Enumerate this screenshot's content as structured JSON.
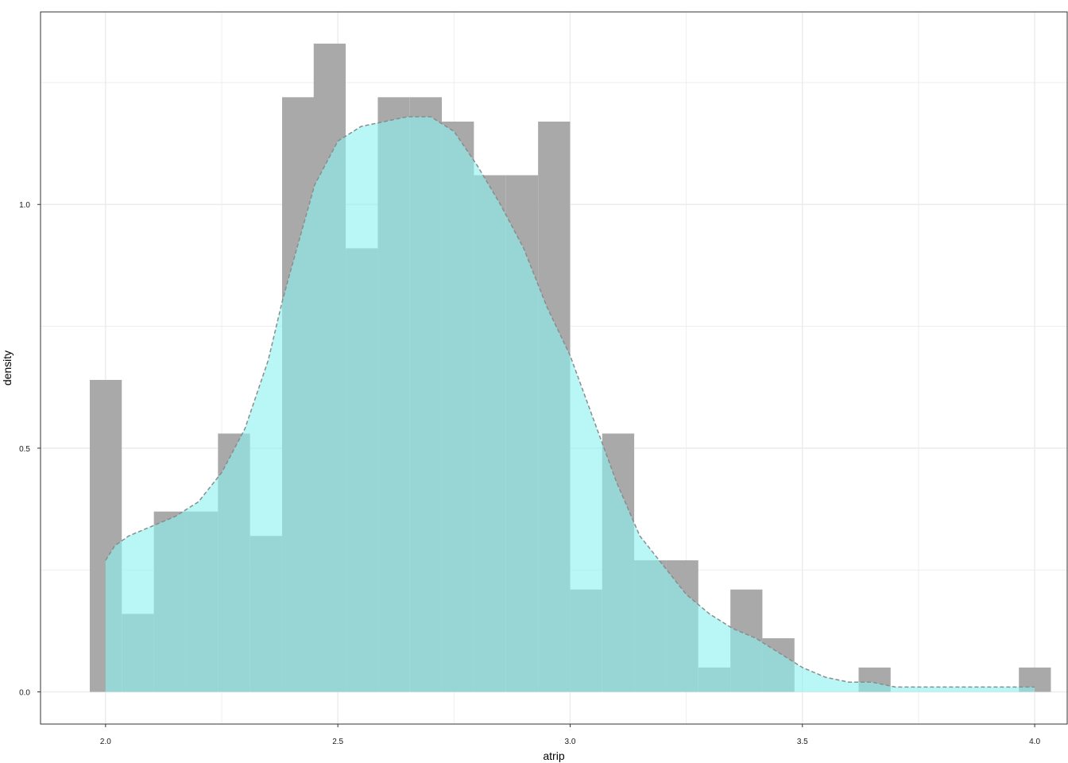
{
  "chart_data": {
    "type": "bar",
    "subtype": "histogram with density overlay",
    "title": "",
    "xlabel": "atrip",
    "ylabel": "density",
    "xlim": [
      1.86,
      4.07
    ],
    "ylim": [
      -0.066,
      1.395
    ],
    "x_ticks": [
      2.0,
      2.5,
      3.0,
      3.5,
      4.0
    ],
    "x_tick_labels": [
      "2.0",
      "2.5",
      "3.0",
      "3.5",
      "4.0"
    ],
    "y_ticks": [
      0.0,
      0.5,
      1.0
    ],
    "y_tick_labels": [
      "0.0",
      "0.5",
      "1.0"
    ],
    "grid": true,
    "legend": "none",
    "colors": {
      "histogram": "#a9a9a9",
      "density_fill": "#8ef1f1",
      "density_line": "#8c8c8c",
      "grid": "#ebebeb",
      "panel_border": "#333333"
    },
    "histogram": {
      "bin_width": 0.0689,
      "bin_starts": [
        1.966,
        2.035,
        2.104,
        2.173,
        2.242,
        2.311,
        2.38,
        2.448,
        2.517,
        2.586,
        2.655,
        2.724,
        2.793,
        2.862,
        2.931,
        3.0,
        3.069,
        3.138,
        3.207,
        3.276,
        3.345,
        3.414,
        3.483,
        3.552,
        3.621,
        3.69,
        3.759,
        3.828,
        3.897,
        3.966
      ],
      "values": [
        0.64,
        0.16,
        0.37,
        0.37,
        0.53,
        0.32,
        1.22,
        1.33,
        0.91,
        1.22,
        1.22,
        1.17,
        1.06,
        1.06,
        1.17,
        0.21,
        0.53,
        0.27,
        0.27,
        0.05,
        0.21,
        0.11,
        0.0,
        0.0,
        0.05,
        0.0,
        0.0,
        0.0,
        0.0,
        0.05
      ]
    },
    "density": {
      "x": [
        2.0,
        2.02,
        2.05,
        2.1,
        2.15,
        2.2,
        2.25,
        2.3,
        2.35,
        2.38,
        2.4,
        2.45,
        2.5,
        2.55,
        2.6,
        2.65,
        2.7,
        2.75,
        2.8,
        2.85,
        2.9,
        2.95,
        3.0,
        3.05,
        3.1,
        3.15,
        3.2,
        3.25,
        3.3,
        3.35,
        3.4,
        3.45,
        3.5,
        3.55,
        3.6,
        3.65,
        3.7,
        3.75,
        3.8,
        3.85,
        3.9,
        3.95,
        4.0
      ],
      "y": [
        0.27,
        0.3,
        0.32,
        0.34,
        0.36,
        0.39,
        0.45,
        0.54,
        0.68,
        0.8,
        0.87,
        1.04,
        1.13,
        1.16,
        1.17,
        1.18,
        1.18,
        1.15,
        1.08,
        1.0,
        0.91,
        0.79,
        0.69,
        0.56,
        0.43,
        0.32,
        0.26,
        0.2,
        0.16,
        0.13,
        0.11,
        0.08,
        0.05,
        0.03,
        0.02,
        0.02,
        0.01,
        0.01,
        0.01,
        0.01,
        0.01,
        0.01,
        0.01
      ]
    }
  }
}
